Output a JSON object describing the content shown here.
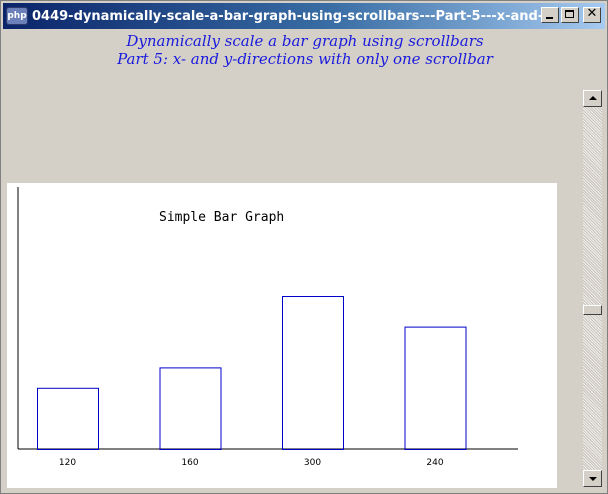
{
  "window": {
    "title": "0449-dynamically-scale-a-bar-graph-using-scrollbars---Part-5---x-and-...",
    "icon": "php-icon"
  },
  "header": {
    "line1": "Dynamically scale a bar graph using scrollbars",
    "line2": "Part 5: x- and y-directions with only one scrollbar"
  },
  "scrollbar": {
    "position": 0.56
  },
  "chart_data": {
    "type": "bar",
    "title": "Simple Bar Graph",
    "categories": [
      "120",
      "160",
      "300",
      "240"
    ],
    "values": [
      120,
      160,
      300,
      240
    ],
    "bar_color": "#0000cc",
    "xlabel": "",
    "ylabel": ""
  }
}
